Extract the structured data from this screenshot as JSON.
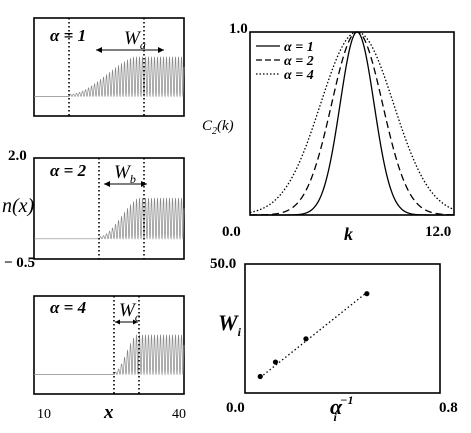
{
  "chart_data": [
    {
      "type": "line",
      "panel": "n(x) alpha=1",
      "ylabel": "n(x)",
      "label": "α = 1",
      "width_label": "W",
      "width_sub": "a",
      "xlim": [
        10,
        40
      ],
      "ylim": [
        -0.5,
        2.0
      ],
      "baseline": 0.0,
      "plateau_amplitude": 1.0,
      "interface_start": 17,
      "interface_end": 32,
      "oscillation_period": 0.6,
      "dotted_lines_x": [
        17,
        32
      ]
    },
    {
      "type": "line",
      "panel": "n(x) alpha=2",
      "ytick_labels": [
        "2.0",
        "− 0.5"
      ],
      "label": "α = 2",
      "width_label": "W",
      "width_sub": "b",
      "xlim": [
        10,
        40
      ],
      "ylim": [
        -0.5,
        2.0
      ],
      "baseline": 0.0,
      "plateau_amplitude": 1.0,
      "interface_start": 23,
      "interface_end": 32,
      "oscillation_period": 0.6,
      "dotted_lines_x": [
        23,
        32
      ]
    },
    {
      "type": "line",
      "panel": "n(x) alpha=4",
      "label": "α = 4",
      "width_label": "W",
      "width_sub": "c",
      "xlabel": "x",
      "xtick_labels": [
        "10",
        "40"
      ],
      "xlim": [
        10,
        40
      ],
      "ylim": [
        -0.5,
        2.0
      ],
      "baseline": 0.0,
      "plateau_amplitude": 1.0,
      "interface_start": 26,
      "interface_end": 31,
      "oscillation_period": 0.6,
      "dotted_lines_x": [
        26,
        31
      ]
    },
    {
      "type": "line",
      "panel": "C2(k)",
      "ylabel": "C",
      "ylabel_sub": "2",
      "ylabel_arg": "(k)",
      "xlabel": "k",
      "xtick_labels": [
        "0.0",
        "12.0"
      ],
      "ytick_labels": [
        "1.0",
        "0.0"
      ],
      "xlim": [
        0,
        12
      ],
      "ylim": [
        0,
        1
      ],
      "grid": false,
      "legend_position": "top-left",
      "series": [
        {
          "name": "α = 1",
          "style": "solid",
          "center": 6.3,
          "sigma": 1.0
        },
        {
          "name": "α = 2",
          "style": "dashed",
          "center": 6.3,
          "sigma": 1.5
        },
        {
          "name": "α = 4",
          "style": "dotted",
          "center": 6.3,
          "sigma": 2.15
        }
      ]
    },
    {
      "type": "scatter",
      "panel": "W vs alpha^-1",
      "ylabel": "W",
      "ylabel_sub": "i",
      "xlabel": "α",
      "xlabel_sub": "i",
      "xlabel_sup": "−1",
      "xtick_labels": [
        "0.0",
        "0.8"
      ],
      "ytick_labels": [
        "50.0"
      ],
      "xlim": [
        0,
        0.8
      ],
      "ylim": [
        0,
        50
      ],
      "points": [
        {
          "x": 0.0625,
          "y": 6.4
        },
        {
          "x": 0.125,
          "y": 12.0
        },
        {
          "x": 0.25,
          "y": 21.0
        },
        {
          "x": 0.5,
          "y": 38.5
        }
      ],
      "fit_line": {
        "style": "dotted",
        "from": [
          0.0625,
          6.0
        ],
        "to": [
          0.5,
          39.0
        ]
      }
    }
  ]
}
